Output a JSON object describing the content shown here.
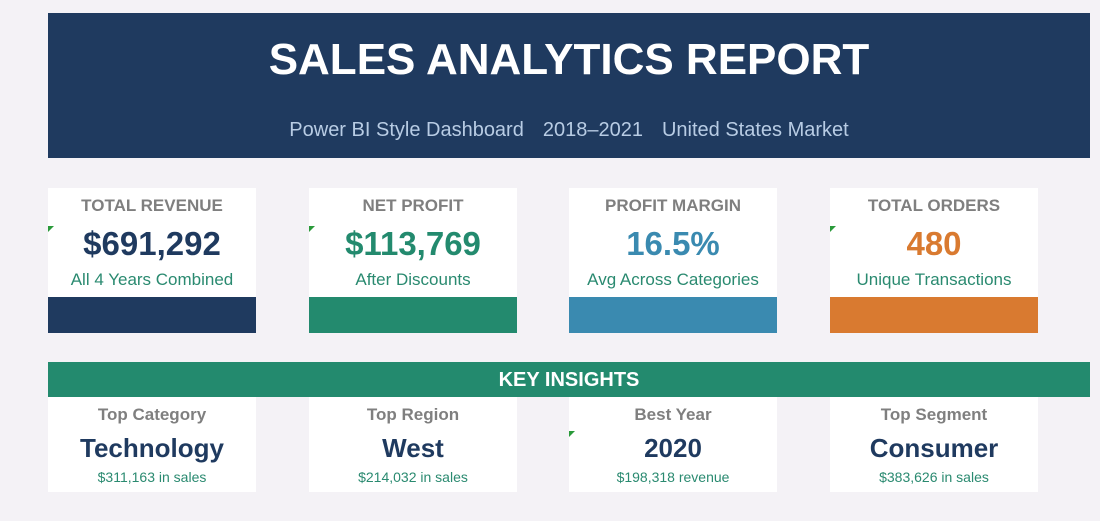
{
  "header": {
    "title": "SALES ANALYTICS REPORT",
    "subtitle": [
      "Power BI Style Dashboard",
      "2018–2021",
      "United States Market"
    ]
  },
  "kpis": [
    {
      "label": "TOTAL REVENUE",
      "value": "$691,292",
      "note": "All 4 Years Combined"
    },
    {
      "label": "NET PROFIT",
      "value": "$113,769",
      "note": "After Discounts"
    },
    {
      "label": "PROFIT MARGIN",
      "value": "16.5%",
      "note": "Avg Across Categories"
    },
    {
      "label": "TOTAL ORDERS",
      "value": "480",
      "note": "Unique Transactions"
    }
  ],
  "insights": {
    "title": "KEY INSIGHTS",
    "cards": [
      {
        "label": "Top Category",
        "value": "Technology",
        "note": "$311,163 in sales"
      },
      {
        "label": "Top Region",
        "value": "West",
        "note": "$214,032 in sales"
      },
      {
        "label": "Best Year",
        "value": "2020",
        "note": "$198,318 revenue"
      },
      {
        "label": "Top Segment",
        "value": "Consumer",
        "note": "$383,626 in sales"
      }
    ]
  }
}
